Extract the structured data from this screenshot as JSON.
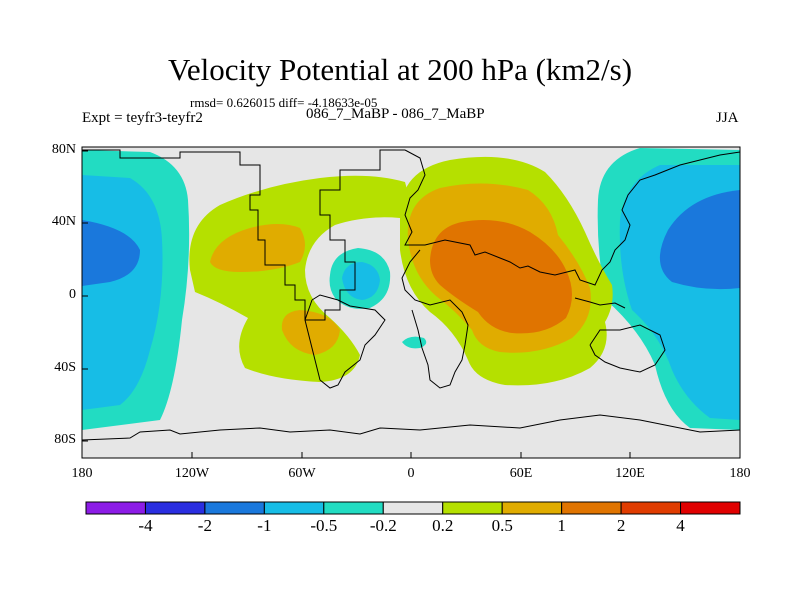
{
  "title": "Velocity Potential at 200 hPa (km2/s)",
  "stats": "rmsd= 0.626015 diff= -4.18633e-05",
  "left_label": "Expt = teyfr3-teyfr2",
  "center_label": "086_7_MaBP - 086_7_MaBP",
  "right_label": "JJA",
  "y_ticks": [
    "80N",
    "40N",
    "0",
    "40S",
    "80S"
  ],
  "x_ticks": [
    "180",
    "120W",
    "60W",
    "0",
    "60E",
    "120E",
    "180"
  ],
  "colorbar": {
    "levels": [
      "-4",
      "-2",
      "-1",
      "-0.5",
      "-0.2",
      "0.2",
      "0.5",
      "1",
      "2",
      "4"
    ],
    "colors": [
      "#8c1ce6",
      "#2a2ee0",
      "#1a78dc",
      "#17bde6",
      "#22dcc2",
      "#e6e6e6",
      "#b5e000",
      "#e0ac00",
      "#e07400",
      "#e03c00",
      "#e00000"
    ]
  },
  "colors": {
    "background_near_zero": "#e6e6e6",
    "coastline": "#000000"
  }
}
